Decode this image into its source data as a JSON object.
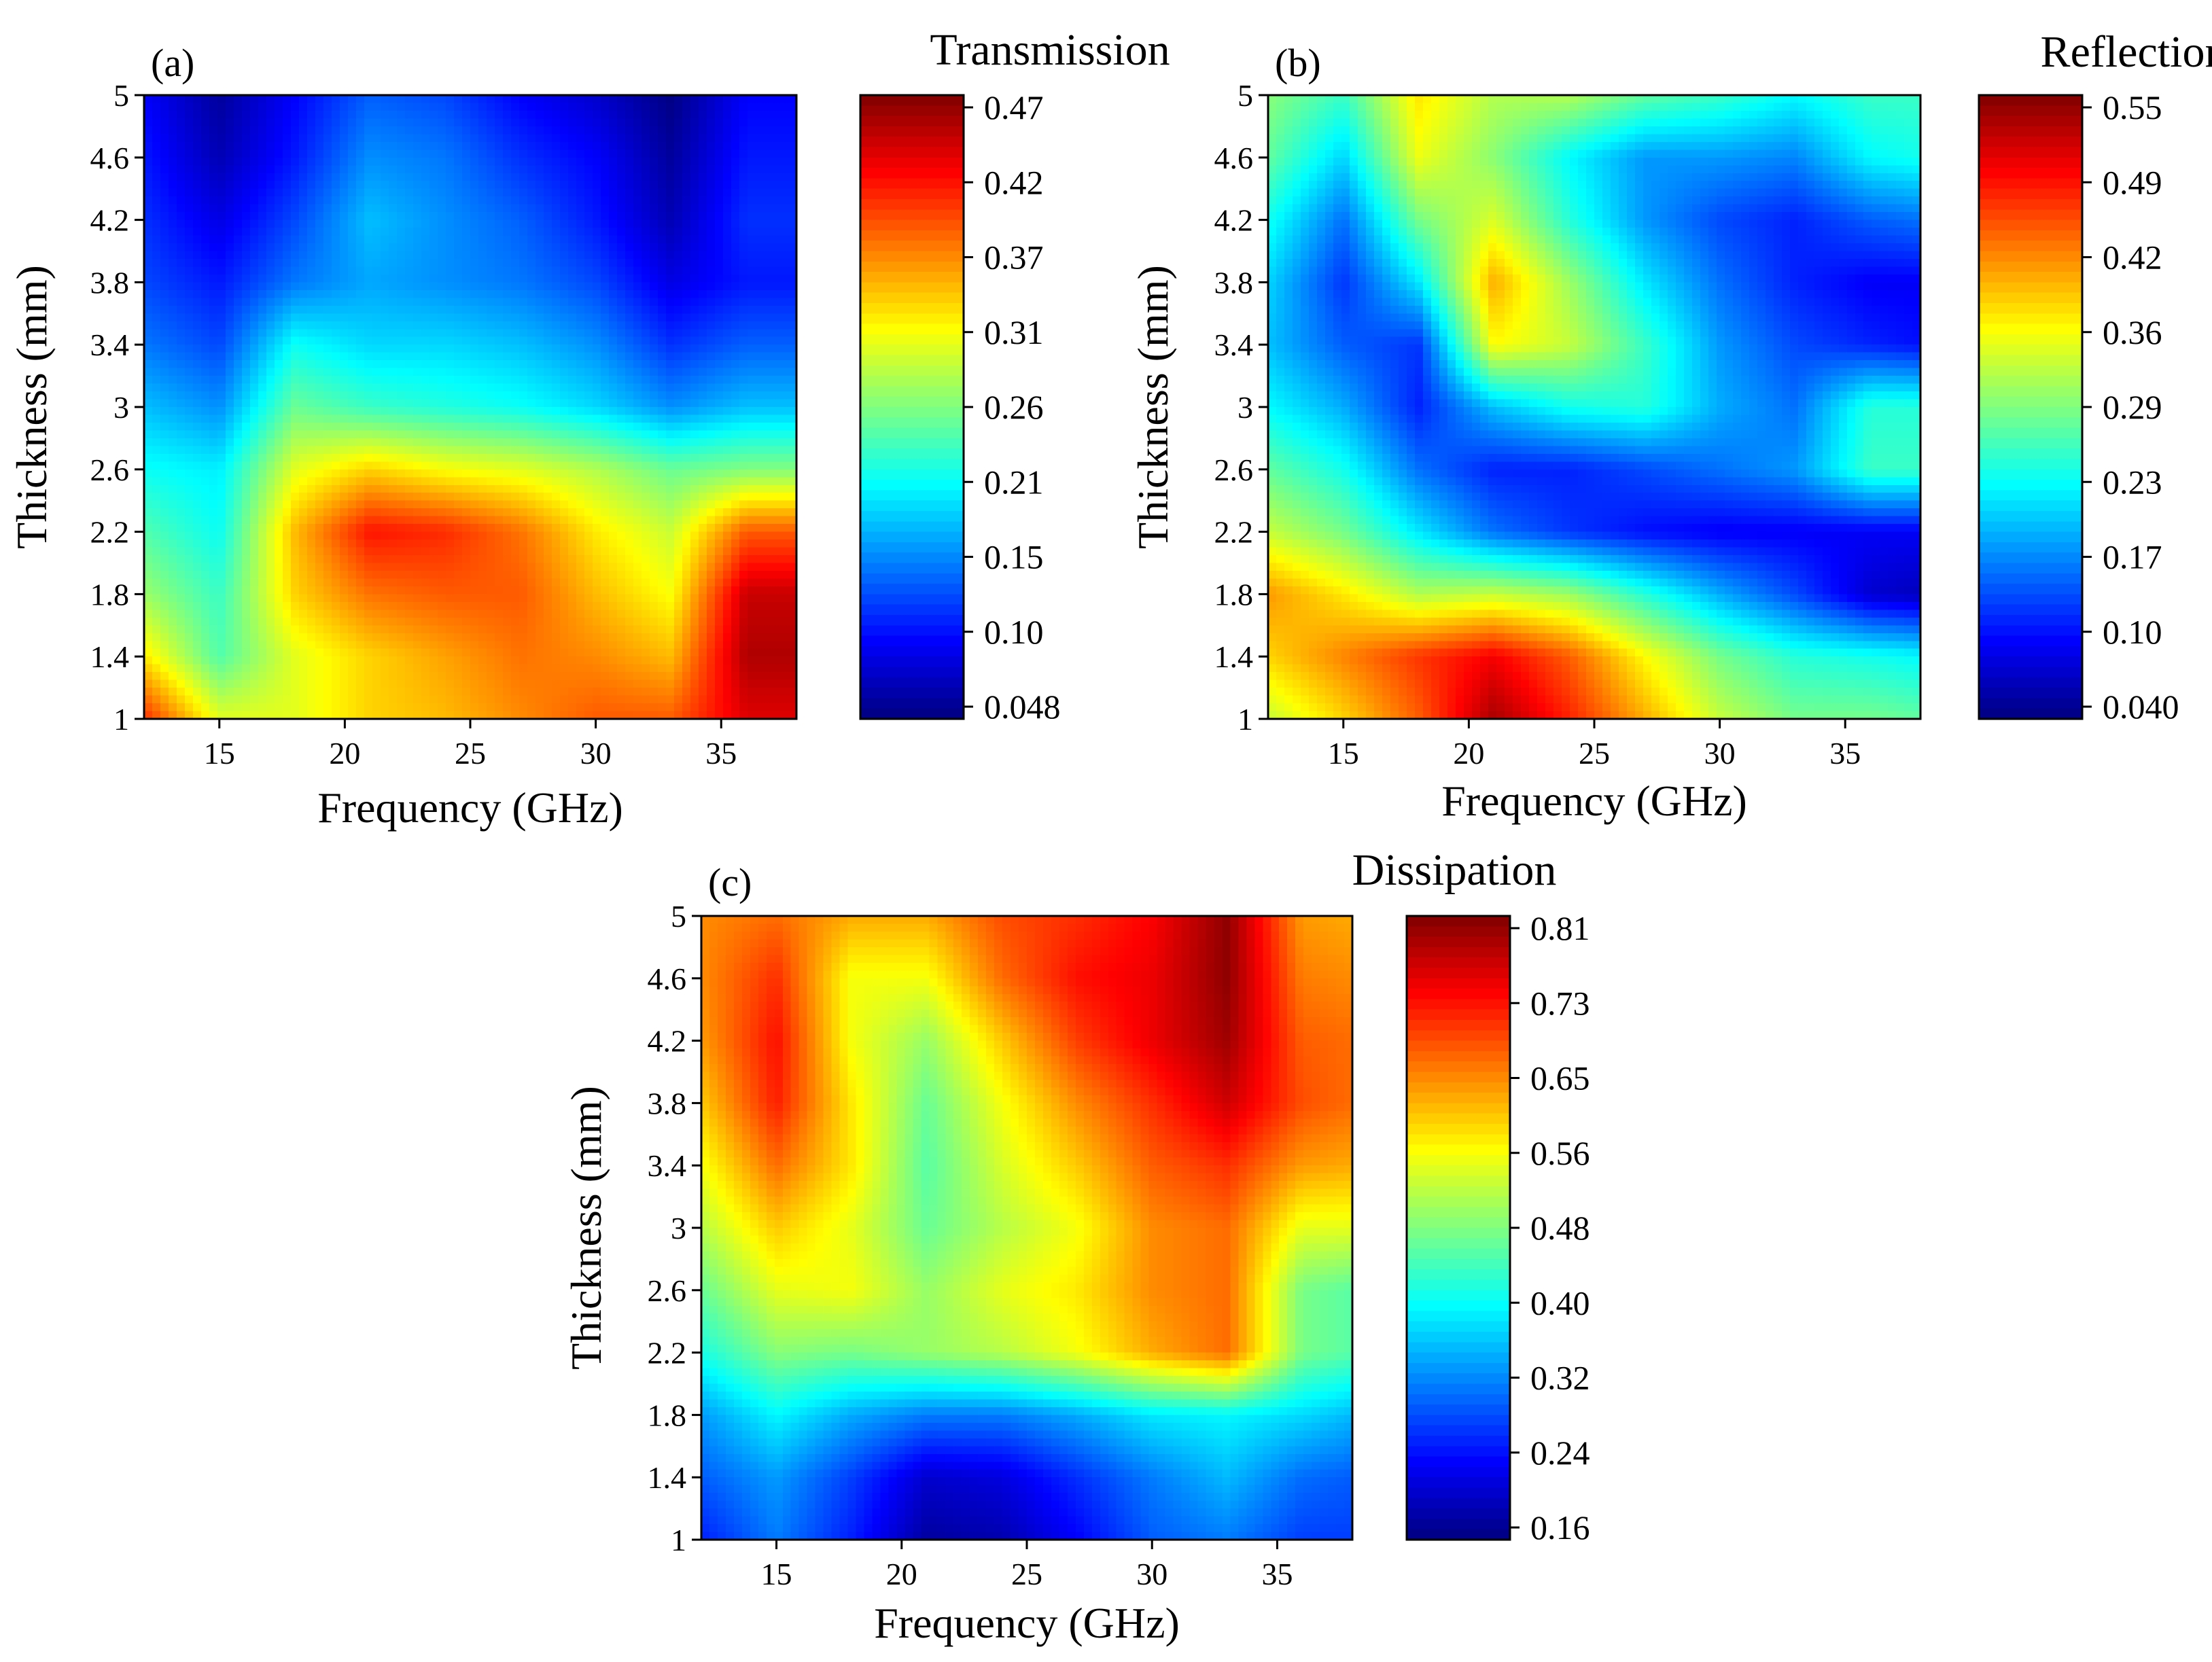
{
  "figure_title": "",
  "chart_data": [
    {
      "type": "heatmap",
      "panel_label": "(a)",
      "title": "Transmission",
      "xlabel": "Frequency (GHz)",
      "ylabel": "Thickness (mm)",
      "xlim": [
        12,
        38
      ],
      "ylim": [
        1,
        5
      ],
      "x_ticks": [
        "15",
        "20",
        "25",
        "30",
        "35"
      ],
      "x_tick_values": [
        15,
        20,
        25,
        30,
        35
      ],
      "y_ticks": [
        "1",
        "1.4",
        "1.8",
        "2.2",
        "2.6",
        "3",
        "3.4",
        "3.8",
        "4.2",
        "4.6",
        "5"
      ],
      "y_tick_values": [
        1,
        1.4,
        1.8,
        2.2,
        2.6,
        3,
        3.4,
        3.8,
        4.2,
        4.6,
        5
      ],
      "colorbar_ticks": [
        "0.47",
        "0.42",
        "0.37",
        "0.31",
        "0.26",
        "0.21",
        "0.15",
        "0.10",
        "0.048"
      ],
      "colorbar_range": [
        0.048,
        0.47
      ],
      "x": [
        12,
        15,
        18,
        21,
        24,
        27,
        30,
        33,
        36,
        38
      ],
      "y": [
        1,
        1.4,
        1.8,
        2.2,
        2.6,
        3,
        3.4,
        3.8,
        4.2,
        4.6,
        5
      ],
      "z": [
        [
          0.4,
          0.3,
          0.3,
          0.33,
          0.34,
          0.36,
          0.38,
          0.38,
          0.43,
          0.43
        ],
        [
          0.32,
          0.24,
          0.3,
          0.33,
          0.35,
          0.37,
          0.36,
          0.34,
          0.45,
          0.45
        ],
        [
          0.27,
          0.23,
          0.33,
          0.37,
          0.38,
          0.38,
          0.34,
          0.31,
          0.44,
          0.44
        ],
        [
          0.24,
          0.21,
          0.34,
          0.41,
          0.4,
          0.37,
          0.32,
          0.29,
          0.38,
          0.38
        ],
        [
          0.21,
          0.2,
          0.3,
          0.33,
          0.31,
          0.3,
          0.28,
          0.25,
          0.26,
          0.26
        ],
        [
          0.18,
          0.16,
          0.25,
          0.23,
          0.22,
          0.21,
          0.19,
          0.16,
          0.18,
          0.18
        ],
        [
          0.15,
          0.13,
          0.21,
          0.19,
          0.19,
          0.18,
          0.16,
          0.12,
          0.14,
          0.14
        ],
        [
          0.13,
          0.11,
          0.15,
          0.17,
          0.16,
          0.15,
          0.13,
          0.09,
          0.11,
          0.11
        ],
        [
          0.12,
          0.09,
          0.13,
          0.18,
          0.16,
          0.14,
          0.11,
          0.07,
          0.12,
          0.12
        ],
        [
          0.11,
          0.07,
          0.11,
          0.16,
          0.15,
          0.12,
          0.1,
          0.06,
          0.11,
          0.11
        ],
        [
          0.1,
          0.06,
          0.1,
          0.14,
          0.13,
          0.1,
          0.08,
          0.05,
          0.1,
          0.1
        ]
      ]
    },
    {
      "type": "heatmap",
      "panel_label": "(b)",
      "title": "Reflection",
      "xlabel": "Frequency (GHz)",
      "ylabel": "Thickness (mm)",
      "xlim": [
        12,
        38
      ],
      "ylim": [
        1,
        5
      ],
      "x_ticks": [
        "15",
        "20",
        "25",
        "30",
        "35"
      ],
      "x_tick_values": [
        15,
        20,
        25,
        30,
        35
      ],
      "y_ticks": [
        "1",
        "1.4",
        "1.8",
        "2.2",
        "2.6",
        "3",
        "3.4",
        "3.8",
        "4.2",
        "4.6",
        "5"
      ],
      "y_tick_values": [
        1,
        1.4,
        1.8,
        2.2,
        2.6,
        3,
        3.4,
        3.8,
        4.2,
        4.6,
        5
      ],
      "colorbar_ticks": [
        "0.55",
        "0.49",
        "0.42",
        "0.36",
        "0.29",
        "0.23",
        "0.17",
        "0.10",
        "0.040"
      ],
      "colorbar_range": [
        0.04,
        0.55
      ],
      "x": [
        12,
        15,
        18,
        21,
        24,
        27,
        30,
        33,
        36,
        38
      ],
      "y": [
        1,
        1.4,
        1.8,
        2.2,
        2.6,
        3,
        3.4,
        3.8,
        4.2,
        4.6,
        5
      ],
      "z": [
        [
          0.33,
          0.38,
          0.44,
          0.53,
          0.47,
          0.4,
          0.33,
          0.29,
          0.29,
          0.28
        ],
        [
          0.38,
          0.42,
          0.46,
          0.49,
          0.44,
          0.36,
          0.29,
          0.25,
          0.24,
          0.23
        ],
        [
          0.41,
          0.37,
          0.32,
          0.33,
          0.31,
          0.25,
          0.19,
          0.14,
          0.08,
          0.07
        ],
        [
          0.33,
          0.29,
          0.22,
          0.16,
          0.13,
          0.11,
          0.1,
          0.1,
          0.1,
          0.1
        ],
        [
          0.28,
          0.24,
          0.16,
          0.12,
          0.12,
          0.14,
          0.16,
          0.18,
          0.26,
          0.26
        ],
        [
          0.23,
          0.19,
          0.12,
          0.2,
          0.24,
          0.25,
          0.19,
          0.16,
          0.25,
          0.25
        ],
        [
          0.2,
          0.15,
          0.13,
          0.36,
          0.33,
          0.26,
          0.18,
          0.14,
          0.12,
          0.11
        ],
        [
          0.21,
          0.13,
          0.22,
          0.4,
          0.31,
          0.22,
          0.16,
          0.12,
          0.1,
          0.1
        ],
        [
          0.24,
          0.16,
          0.29,
          0.34,
          0.25,
          0.18,
          0.14,
          0.12,
          0.15,
          0.16
        ],
        [
          0.28,
          0.21,
          0.35,
          0.3,
          0.23,
          0.18,
          0.18,
          0.17,
          0.23,
          0.24
        ],
        [
          0.3,
          0.26,
          0.37,
          0.32,
          0.32,
          0.28,
          0.26,
          0.23,
          0.26,
          0.26
        ]
      ]
    },
    {
      "type": "heatmap",
      "panel_label": "(c)",
      "title": "Dissipation",
      "xlabel": "Frequency (GHz)",
      "ylabel": "Thickness (mm)",
      "xlim": [
        12,
        38
      ],
      "ylim": [
        1,
        5
      ],
      "x_ticks": [
        "15",
        "20",
        "25",
        "30",
        "35"
      ],
      "x_tick_values": [
        15,
        20,
        25,
        30,
        35
      ],
      "y_ticks": [
        "1",
        "1.4",
        "1.8",
        "2.2",
        "2.6",
        "3",
        "3.4",
        "3.8",
        "4.2",
        "4.6",
        "5"
      ],
      "y_tick_values": [
        1,
        1.4,
        1.8,
        2.2,
        2.6,
        3,
        3.4,
        3.8,
        4.2,
        4.6,
        5
      ],
      "colorbar_ticks": [
        "0.81",
        "0.73",
        "0.65",
        "0.56",
        "0.48",
        "0.40",
        "0.32",
        "0.24",
        "0.16"
      ],
      "colorbar_range": [
        0.16,
        0.81
      ],
      "x": [
        12,
        15,
        18,
        21,
        24,
        27,
        30,
        33,
        36,
        38
      ],
      "y": [
        1,
        1.4,
        1.8,
        2.2,
        2.6,
        3,
        3.4,
        3.8,
        4.2,
        4.6,
        5
      ],
      "z": [
        [
          0.26,
          0.32,
          0.26,
          0.18,
          0.19,
          0.24,
          0.3,
          0.32,
          0.28,
          0.28
        ],
        [
          0.3,
          0.34,
          0.28,
          0.21,
          0.22,
          0.27,
          0.32,
          0.36,
          0.31,
          0.3
        ],
        [
          0.34,
          0.4,
          0.35,
          0.32,
          0.32,
          0.35,
          0.39,
          0.4,
          0.38,
          0.36
        ],
        [
          0.42,
          0.49,
          0.48,
          0.5,
          0.52,
          0.56,
          0.62,
          0.66,
          0.48,
          0.46
        ],
        [
          0.47,
          0.55,
          0.56,
          0.5,
          0.55,
          0.58,
          0.64,
          0.66,
          0.48,
          0.46
        ],
        [
          0.52,
          0.6,
          0.55,
          0.47,
          0.52,
          0.56,
          0.64,
          0.66,
          0.55,
          0.55
        ],
        [
          0.56,
          0.66,
          0.58,
          0.46,
          0.54,
          0.6,
          0.67,
          0.7,
          0.63,
          0.62
        ],
        [
          0.6,
          0.71,
          0.58,
          0.47,
          0.56,
          0.64,
          0.7,
          0.76,
          0.68,
          0.66
        ],
        [
          0.63,
          0.72,
          0.56,
          0.5,
          0.6,
          0.69,
          0.74,
          0.79,
          0.67,
          0.66
        ],
        [
          0.64,
          0.7,
          0.56,
          0.56,
          0.66,
          0.72,
          0.74,
          0.8,
          0.65,
          0.64
        ],
        [
          0.64,
          0.66,
          0.62,
          0.62,
          0.68,
          0.7,
          0.73,
          0.8,
          0.63,
          0.62
        ]
      ]
    }
  ]
}
